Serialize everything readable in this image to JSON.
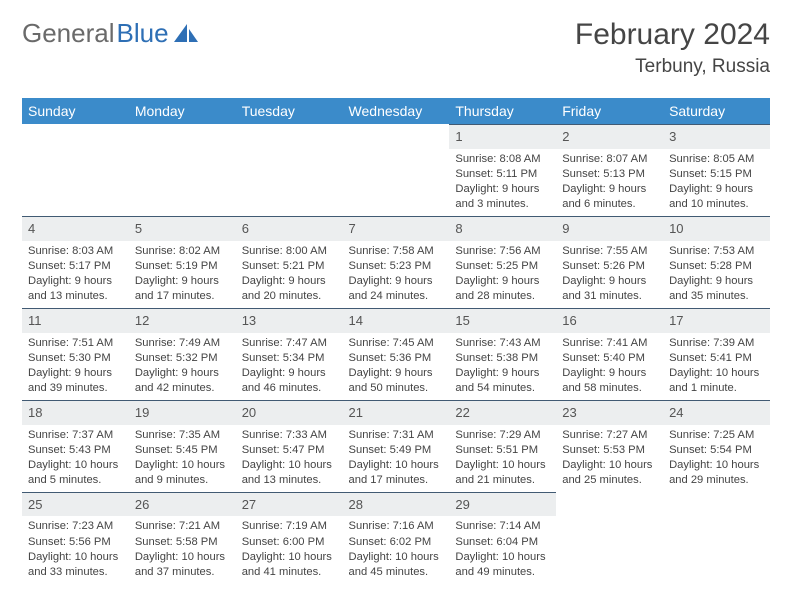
{
  "logo": {
    "text1": "General",
    "text2": "Blue"
  },
  "title": "February 2024",
  "location": "Terbuny, Russia",
  "colors": {
    "header_bg": "#3b8bca",
    "header_fg": "#ffffff",
    "daynum_bg": "#eceeef",
    "row_border": "#415a73",
    "page_bg": "#ffffff",
    "text": "#3a3a3a",
    "logo_gray": "#6a6a6a",
    "logo_blue": "#2e6fb5"
  },
  "columns": [
    "Sunday",
    "Monday",
    "Tuesday",
    "Wednesday",
    "Thursday",
    "Friday",
    "Saturday"
  ],
  "weeks": [
    [
      null,
      null,
      null,
      null,
      {
        "n": "1",
        "sr": "8:08 AM",
        "ss": "5:11 PM",
        "dl": "9 hours and 3 minutes."
      },
      {
        "n": "2",
        "sr": "8:07 AM",
        "ss": "5:13 PM",
        "dl": "9 hours and 6 minutes."
      },
      {
        "n": "3",
        "sr": "8:05 AM",
        "ss": "5:15 PM",
        "dl": "9 hours and 10 minutes."
      }
    ],
    [
      {
        "n": "4",
        "sr": "8:03 AM",
        "ss": "5:17 PM",
        "dl": "9 hours and 13 minutes."
      },
      {
        "n": "5",
        "sr": "8:02 AM",
        "ss": "5:19 PM",
        "dl": "9 hours and 17 minutes."
      },
      {
        "n": "6",
        "sr": "8:00 AM",
        "ss": "5:21 PM",
        "dl": "9 hours and 20 minutes."
      },
      {
        "n": "7",
        "sr": "7:58 AM",
        "ss": "5:23 PM",
        "dl": "9 hours and 24 minutes."
      },
      {
        "n": "8",
        "sr": "7:56 AM",
        "ss": "5:25 PM",
        "dl": "9 hours and 28 minutes."
      },
      {
        "n": "9",
        "sr": "7:55 AM",
        "ss": "5:26 PM",
        "dl": "9 hours and 31 minutes."
      },
      {
        "n": "10",
        "sr": "7:53 AM",
        "ss": "5:28 PM",
        "dl": "9 hours and 35 minutes."
      }
    ],
    [
      {
        "n": "11",
        "sr": "7:51 AM",
        "ss": "5:30 PM",
        "dl": "9 hours and 39 minutes."
      },
      {
        "n": "12",
        "sr": "7:49 AM",
        "ss": "5:32 PM",
        "dl": "9 hours and 42 minutes."
      },
      {
        "n": "13",
        "sr": "7:47 AM",
        "ss": "5:34 PM",
        "dl": "9 hours and 46 minutes."
      },
      {
        "n": "14",
        "sr": "7:45 AM",
        "ss": "5:36 PM",
        "dl": "9 hours and 50 minutes."
      },
      {
        "n": "15",
        "sr": "7:43 AM",
        "ss": "5:38 PM",
        "dl": "9 hours and 54 minutes."
      },
      {
        "n": "16",
        "sr": "7:41 AM",
        "ss": "5:40 PM",
        "dl": "9 hours and 58 minutes."
      },
      {
        "n": "17",
        "sr": "7:39 AM",
        "ss": "5:41 PM",
        "dl": "10 hours and 1 minute."
      }
    ],
    [
      {
        "n": "18",
        "sr": "7:37 AM",
        "ss": "5:43 PM",
        "dl": "10 hours and 5 minutes."
      },
      {
        "n": "19",
        "sr": "7:35 AM",
        "ss": "5:45 PM",
        "dl": "10 hours and 9 minutes."
      },
      {
        "n": "20",
        "sr": "7:33 AM",
        "ss": "5:47 PM",
        "dl": "10 hours and 13 minutes."
      },
      {
        "n": "21",
        "sr": "7:31 AM",
        "ss": "5:49 PM",
        "dl": "10 hours and 17 minutes."
      },
      {
        "n": "22",
        "sr": "7:29 AM",
        "ss": "5:51 PM",
        "dl": "10 hours and 21 minutes."
      },
      {
        "n": "23",
        "sr": "7:27 AM",
        "ss": "5:53 PM",
        "dl": "10 hours and 25 minutes."
      },
      {
        "n": "24",
        "sr": "7:25 AM",
        "ss": "5:54 PM",
        "dl": "10 hours and 29 minutes."
      }
    ],
    [
      {
        "n": "25",
        "sr": "7:23 AM",
        "ss": "5:56 PM",
        "dl": "10 hours and 33 minutes."
      },
      {
        "n": "26",
        "sr": "7:21 AM",
        "ss": "5:58 PM",
        "dl": "10 hours and 37 minutes."
      },
      {
        "n": "27",
        "sr": "7:19 AM",
        "ss": "6:00 PM",
        "dl": "10 hours and 41 minutes."
      },
      {
        "n": "28",
        "sr": "7:16 AM",
        "ss": "6:02 PM",
        "dl": "10 hours and 45 minutes."
      },
      {
        "n": "29",
        "sr": "7:14 AM",
        "ss": "6:04 PM",
        "dl": "10 hours and 49 minutes."
      },
      null,
      null
    ]
  ],
  "labels": {
    "sunrise": "Sunrise:",
    "sunset": "Sunset:",
    "daylight": "Daylight:"
  }
}
